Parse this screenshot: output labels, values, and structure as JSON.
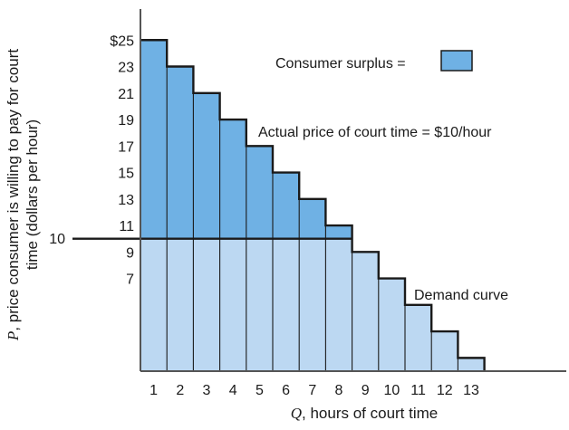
{
  "chart_data": {
    "type": "bar",
    "categories": [
      "1",
      "2",
      "3",
      "4",
      "5",
      "6",
      "7",
      "8",
      "9",
      "10",
      "11",
      "12",
      "13"
    ],
    "values": [
      25,
      23,
      21,
      19,
      17,
      15,
      13,
      11,
      9,
      7,
      5,
      3,
      1
    ],
    "price_line": 10,
    "y_tick_labels": [
      "$25",
      "23",
      "21",
      "19",
      "17",
      "15",
      "13",
      "11",
      "9",
      "7"
    ],
    "y_tick_values": [
      25,
      23,
      21,
      19,
      17,
      15,
      13,
      11,
      9,
      7
    ],
    "price_line_label": "10",
    "xlabel_var": "Q",
    "xlabel_rest": ", hours of court time",
    "ylabel_var": "P",
    "ylabel_line1_rest": ", price consumer is willing to pay for court",
    "ylabel_line2": "time (dollars per hour)",
    "annotations": {
      "consumer_surplus": "Consumer surplus =",
      "actual_price": "Actual price of court time = $10/hour",
      "demand_curve": "Demand curve"
    },
    "ylim": [
      0,
      28
    ],
    "xlim": [
      0.5,
      16.1
    ],
    "grid": false,
    "colors": {
      "surplus_fill": "#6fb1e4",
      "below_price_fill": "#bcd8f2",
      "outline": "#1a1a1a"
    }
  }
}
